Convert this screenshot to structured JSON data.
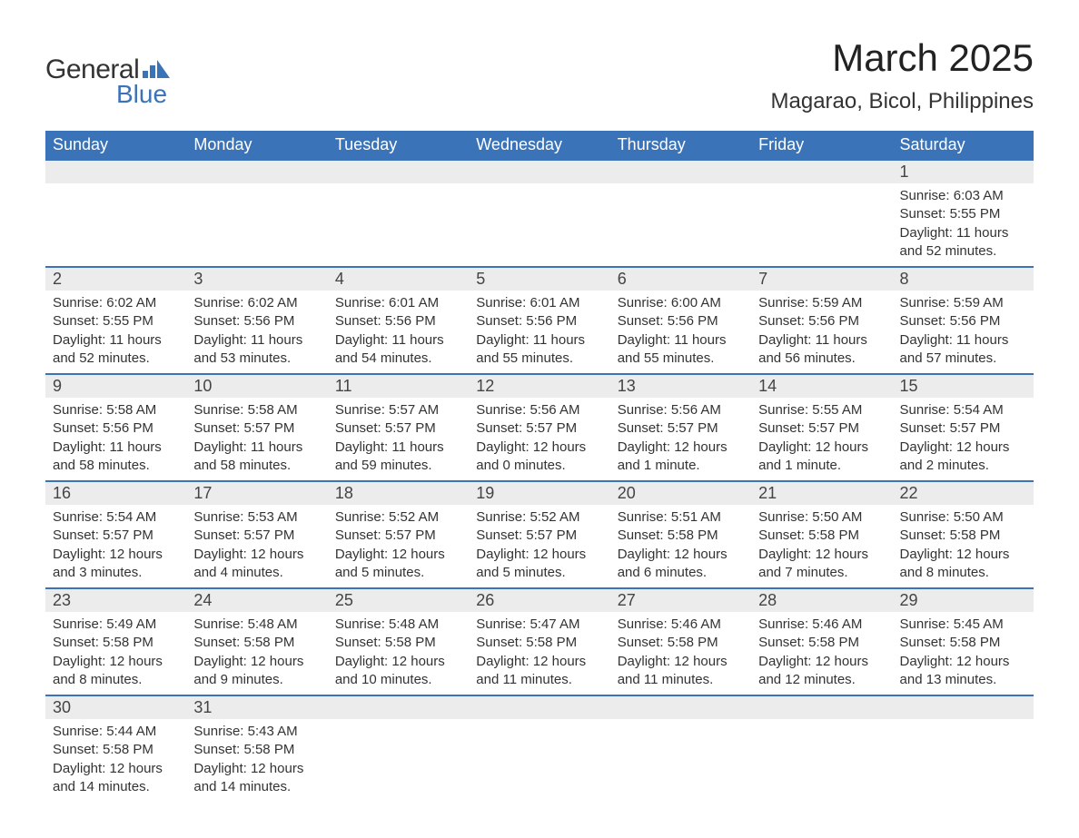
{
  "logo": {
    "word1": "General",
    "word2": "Blue",
    "chart_color": "#3b73b9"
  },
  "title": "March 2025",
  "location": "Magarao, Bicol, Philippines",
  "colors": {
    "header_bg": "#3b73b9",
    "header_text": "#ffffff",
    "daynum_bg": "#ececec",
    "row_divider": "#3b73b9",
    "body_text": "#333333",
    "page_bg": "#ffffff"
  },
  "typography": {
    "title_fontsize": 42,
    "location_fontsize": 24,
    "dayheader_fontsize": 18,
    "daynum_fontsize": 18,
    "cell_fontsize": 15
  },
  "calendar": {
    "type": "table",
    "columns": [
      "Sunday",
      "Monday",
      "Tuesday",
      "Wednesday",
      "Thursday",
      "Friday",
      "Saturday"
    ],
    "weeks": [
      [
        null,
        null,
        null,
        null,
        null,
        null,
        {
          "n": "1",
          "sr": "Sunrise: 6:03 AM",
          "ss": "Sunset: 5:55 PM",
          "dl": "Daylight: 11 hours and 52 minutes."
        }
      ],
      [
        {
          "n": "2",
          "sr": "Sunrise: 6:02 AM",
          "ss": "Sunset: 5:55 PM",
          "dl": "Daylight: 11 hours and 52 minutes."
        },
        {
          "n": "3",
          "sr": "Sunrise: 6:02 AM",
          "ss": "Sunset: 5:56 PM",
          "dl": "Daylight: 11 hours and 53 minutes."
        },
        {
          "n": "4",
          "sr": "Sunrise: 6:01 AM",
          "ss": "Sunset: 5:56 PM",
          "dl": "Daylight: 11 hours and 54 minutes."
        },
        {
          "n": "5",
          "sr": "Sunrise: 6:01 AM",
          "ss": "Sunset: 5:56 PM",
          "dl": "Daylight: 11 hours and 55 minutes."
        },
        {
          "n": "6",
          "sr": "Sunrise: 6:00 AM",
          "ss": "Sunset: 5:56 PM",
          "dl": "Daylight: 11 hours and 55 minutes."
        },
        {
          "n": "7",
          "sr": "Sunrise: 5:59 AM",
          "ss": "Sunset: 5:56 PM",
          "dl": "Daylight: 11 hours and 56 minutes."
        },
        {
          "n": "8",
          "sr": "Sunrise: 5:59 AM",
          "ss": "Sunset: 5:56 PM",
          "dl": "Daylight: 11 hours and 57 minutes."
        }
      ],
      [
        {
          "n": "9",
          "sr": "Sunrise: 5:58 AM",
          "ss": "Sunset: 5:56 PM",
          "dl": "Daylight: 11 hours and 58 minutes."
        },
        {
          "n": "10",
          "sr": "Sunrise: 5:58 AM",
          "ss": "Sunset: 5:57 PM",
          "dl": "Daylight: 11 hours and 58 minutes."
        },
        {
          "n": "11",
          "sr": "Sunrise: 5:57 AM",
          "ss": "Sunset: 5:57 PM",
          "dl": "Daylight: 11 hours and 59 minutes."
        },
        {
          "n": "12",
          "sr": "Sunrise: 5:56 AM",
          "ss": "Sunset: 5:57 PM",
          "dl": "Daylight: 12 hours and 0 minutes."
        },
        {
          "n": "13",
          "sr": "Sunrise: 5:56 AM",
          "ss": "Sunset: 5:57 PM",
          "dl": "Daylight: 12 hours and 1 minute."
        },
        {
          "n": "14",
          "sr": "Sunrise: 5:55 AM",
          "ss": "Sunset: 5:57 PM",
          "dl": "Daylight: 12 hours and 1 minute."
        },
        {
          "n": "15",
          "sr": "Sunrise: 5:54 AM",
          "ss": "Sunset: 5:57 PM",
          "dl": "Daylight: 12 hours and 2 minutes."
        }
      ],
      [
        {
          "n": "16",
          "sr": "Sunrise: 5:54 AM",
          "ss": "Sunset: 5:57 PM",
          "dl": "Daylight: 12 hours and 3 minutes."
        },
        {
          "n": "17",
          "sr": "Sunrise: 5:53 AM",
          "ss": "Sunset: 5:57 PM",
          "dl": "Daylight: 12 hours and 4 minutes."
        },
        {
          "n": "18",
          "sr": "Sunrise: 5:52 AM",
          "ss": "Sunset: 5:57 PM",
          "dl": "Daylight: 12 hours and 5 minutes."
        },
        {
          "n": "19",
          "sr": "Sunrise: 5:52 AM",
          "ss": "Sunset: 5:57 PM",
          "dl": "Daylight: 12 hours and 5 minutes."
        },
        {
          "n": "20",
          "sr": "Sunrise: 5:51 AM",
          "ss": "Sunset: 5:58 PM",
          "dl": "Daylight: 12 hours and 6 minutes."
        },
        {
          "n": "21",
          "sr": "Sunrise: 5:50 AM",
          "ss": "Sunset: 5:58 PM",
          "dl": "Daylight: 12 hours and 7 minutes."
        },
        {
          "n": "22",
          "sr": "Sunrise: 5:50 AM",
          "ss": "Sunset: 5:58 PM",
          "dl": "Daylight: 12 hours and 8 minutes."
        }
      ],
      [
        {
          "n": "23",
          "sr": "Sunrise: 5:49 AM",
          "ss": "Sunset: 5:58 PM",
          "dl": "Daylight: 12 hours and 8 minutes."
        },
        {
          "n": "24",
          "sr": "Sunrise: 5:48 AM",
          "ss": "Sunset: 5:58 PM",
          "dl": "Daylight: 12 hours and 9 minutes."
        },
        {
          "n": "25",
          "sr": "Sunrise: 5:48 AM",
          "ss": "Sunset: 5:58 PM",
          "dl": "Daylight: 12 hours and 10 minutes."
        },
        {
          "n": "26",
          "sr": "Sunrise: 5:47 AM",
          "ss": "Sunset: 5:58 PM",
          "dl": "Daylight: 12 hours and 11 minutes."
        },
        {
          "n": "27",
          "sr": "Sunrise: 5:46 AM",
          "ss": "Sunset: 5:58 PM",
          "dl": "Daylight: 12 hours and 11 minutes."
        },
        {
          "n": "28",
          "sr": "Sunrise: 5:46 AM",
          "ss": "Sunset: 5:58 PM",
          "dl": "Daylight: 12 hours and 12 minutes."
        },
        {
          "n": "29",
          "sr": "Sunrise: 5:45 AM",
          "ss": "Sunset: 5:58 PM",
          "dl": "Daylight: 12 hours and 13 minutes."
        }
      ],
      [
        {
          "n": "30",
          "sr": "Sunrise: 5:44 AM",
          "ss": "Sunset: 5:58 PM",
          "dl": "Daylight: 12 hours and 14 minutes."
        },
        {
          "n": "31",
          "sr": "Sunrise: 5:43 AM",
          "ss": "Sunset: 5:58 PM",
          "dl": "Daylight: 12 hours and 14 minutes."
        },
        null,
        null,
        null,
        null,
        null
      ]
    ]
  }
}
